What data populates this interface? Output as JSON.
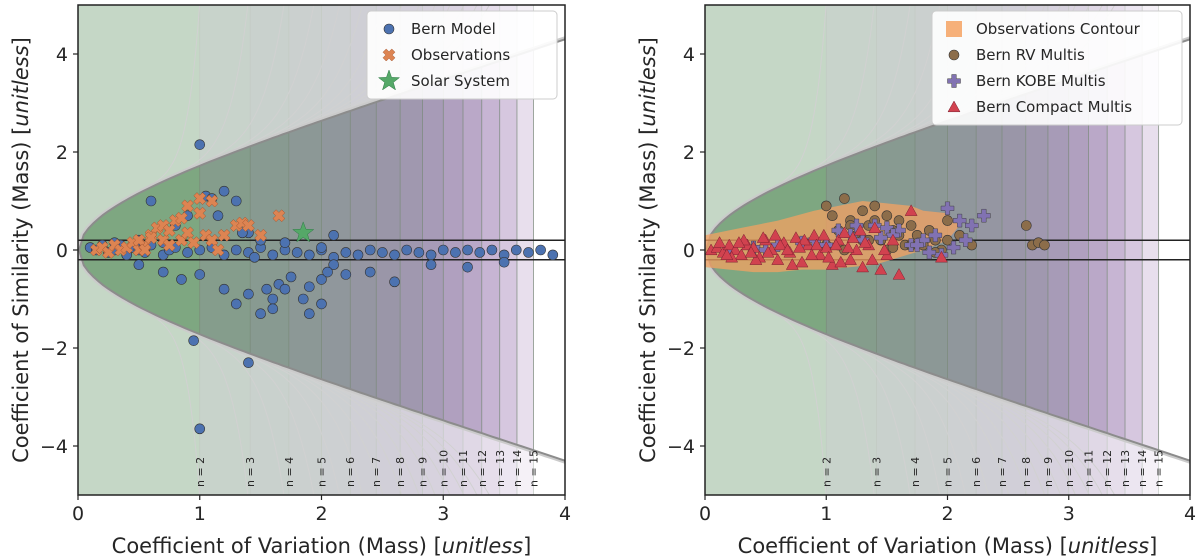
{
  "chart_data": [
    {
      "type": "scatter",
      "panel": "left",
      "xlabel": "Coefficient of Variation (Mass)",
      "ylabel": "Coefficient of Similarity (Mass)",
      "unit": "unitless",
      "xlim": [
        0,
        4
      ],
      "ylim": [
        -5,
        5
      ],
      "xticks": [
        "0",
        "1",
        "2",
        "3",
        "4"
      ],
      "yticks": [
        "4",
        "2",
        "0",
        "−2",
        "−4"
      ],
      "x_tick_values": [
        0,
        1,
        2,
        3,
        4
      ],
      "y_tick_values": [
        4,
        2,
        0,
        -2,
        -4
      ],
      "hlines": [
        0.2,
        -0.2
      ],
      "legend": [
        "Bern Model",
        "Observations",
        "Solar System"
      ],
      "series": [
        {
          "name": "Bern Model",
          "marker": "circle",
          "color": "#4c72b0",
          "x": [
            0.1,
            0.15,
            0.2,
            0.25,
            0.3,
            0.35,
            0.4,
            0.45,
            0.5,
            0.55,
            0.6,
            0.7,
            0.75,
            0.8,
            0.9,
            1.0,
            1.1,
            1.2,
            1.3,
            1.4,
            1.5,
            1.6,
            1.7,
            1.8,
            1.9,
            2.0,
            2.1,
            2.2,
            2.3,
            2.4,
            2.5,
            2.6,
            2.7,
            2.8,
            2.9,
            3.0,
            3.1,
            3.2,
            3.3,
            3.4,
            3.5,
            3.6,
            3.7,
            3.8,
            3.9,
            0.6,
            0.8,
            0.9,
            1.0,
            1.05,
            1.1,
            1.15,
            1.2,
            1.3,
            1.4,
            1.45,
            0.5,
            0.7,
            0.85,
            1.0,
            1.2,
            1.3,
            1.4,
            1.5,
            1.55,
            1.6,
            1.65,
            1.7,
            1.75,
            1.85,
            1.9,
            2.0,
            2.1,
            2.2,
            2.4,
            2.6,
            2.9,
            3.2,
            3.5,
            0.95,
            1.0,
            1.4,
            1.6,
            1.9,
            2.0,
            2.05,
            0.3,
            0.5,
            0.7,
            1.35,
            1.5,
            1.7,
            2.0,
            2.1
          ],
          "y": [
            0.05,
            0.0,
            0.1,
            -0.05,
            0.0,
            0.1,
            -0.1,
            0.05,
            0.0,
            -0.05,
            0.1,
            -0.1,
            0.0,
            0.05,
            -0.05,
            0.0,
            0.05,
            -0.1,
            0.0,
            -0.05,
            0.05,
            -0.1,
            0.0,
            -0.05,
            -0.1,
            0.0,
            -0.15,
            -0.05,
            -0.1,
            0.0,
            -0.05,
            -0.1,
            0.0,
            -0.05,
            -0.1,
            0.0,
            -0.05,
            0.0,
            -0.05,
            0.0,
            -0.1,
            0.0,
            -0.05,
            0.0,
            -0.1,
            1.0,
            0.5,
            0.7,
            2.15,
            1.1,
            1.05,
            0.7,
            1.2,
            1.0,
            0.35,
            -0.15,
            -0.3,
            -0.45,
            -0.6,
            -0.5,
            -0.8,
            -1.1,
            -0.9,
            -1.3,
            -0.8,
            -1.0,
            -0.7,
            -0.8,
            -0.55,
            -1.0,
            -0.75,
            -0.6,
            -0.3,
            -0.5,
            -0.45,
            -0.65,
            -0.3,
            -0.35,
            -0.25,
            -1.85,
            -3.65,
            -2.3,
            -1.2,
            -1.3,
            -1.1,
            -0.45,
            0.15,
            0.2,
            0.15,
            0.35,
            0.2,
            0.15,
            0.05,
            0.3
          ]
        },
        {
          "name": "Observations",
          "marker": "x",
          "color": "#dd8452",
          "x": [
            0.15,
            0.2,
            0.25,
            0.3,
            0.35,
            0.4,
            0.45,
            0.5,
            0.55,
            0.6,
            0.65,
            0.7,
            0.75,
            0.8,
            0.85,
            0.9,
            0.95,
            1.0,
            1.05,
            1.1,
            1.15,
            1.2,
            1.3,
            1.35,
            1.4,
            1.5,
            1.65,
            0.5,
            0.55,
            0.6,
            0.7,
            0.75,
            0.85,
            0.9,
            1.0,
            1.1
          ],
          "y": [
            0.0,
            0.05,
            -0.05,
            0.1,
            0.0,
            0.05,
            0.15,
            0.0,
            0.1,
            0.3,
            0.45,
            0.2,
            0.1,
            0.6,
            0.2,
            0.35,
            0.15,
            0.75,
            0.3,
            0.2,
            0.0,
            0.3,
            0.5,
            0.55,
            0.5,
            0.3,
            0.7,
            0.2,
            0.0,
            0.25,
            0.5,
            0.4,
            0.65,
            0.9,
            1.05,
            1.0
          ]
        },
        {
          "name": "Solar System",
          "marker": "star",
          "color": "#55a868",
          "x": [
            1.85
          ],
          "y": [
            0.35
          ]
        }
      ],
      "n_labels": [
        "n = 2",
        "n = 3",
        "n = 4",
        "n = 5",
        "n = 6",
        "n = 7",
        "n = 8",
        "n = 9",
        "n = 10",
        "n = 11",
        "n = 12",
        "n = 13",
        "n = 14",
        "n = 15"
      ]
    },
    {
      "type": "scatter",
      "panel": "right",
      "xlabel": "Coefficient of Variation (Mass)",
      "ylabel": "Coefficient of Similarity (Mass)",
      "unit": "unitless",
      "xlim": [
        0,
        4
      ],
      "ylim": [
        -5,
        5
      ],
      "xticks": [
        "0",
        "1",
        "2",
        "3",
        "4"
      ],
      "yticks": [
        "4",
        "2",
        "0",
        "−2",
        "−4"
      ],
      "x_tick_values": [
        0,
        1,
        2,
        3,
        4
      ],
      "y_tick_values": [
        4,
        2,
        0,
        -2,
        -4
      ],
      "hlines": [
        0.2,
        -0.2
      ],
      "legend": [
        "Observations Contour",
        "Bern RV Multis",
        "Bern KOBE Multis",
        "Bern Compact Multis"
      ],
      "contour": {
        "name": "Observations Contour",
        "color": "#f4a261",
        "x": [
          0.0,
          0.3,
          0.6,
          0.9,
          1.1,
          1.3,
          1.5,
          1.7,
          1.8,
          2.0,
          2.1,
          2.0,
          1.8,
          1.6,
          1.4,
          1.2,
          1.0,
          0.8,
          0.6,
          0.4,
          0.2,
          0.0
        ],
        "y": [
          0.3,
          0.45,
          0.6,
          0.8,
          0.9,
          1.0,
          0.95,
          0.9,
          0.8,
          0.75,
          0.5,
          0.2,
          0.0,
          -0.15,
          -0.3,
          -0.35,
          -0.4,
          -0.4,
          -0.45,
          -0.45,
          -0.4,
          -0.35
        ]
      },
      "series": [
        {
          "name": "Bern RV Multis",
          "marker": "circle",
          "color": "#8c6d4a",
          "x": [
            1.0,
            1.05,
            1.1,
            1.15,
            1.2,
            1.25,
            1.3,
            1.35,
            1.4,
            1.45,
            1.5,
            1.55,
            1.6,
            1.65,
            1.7,
            1.75,
            1.8,
            1.85,
            1.9,
            1.95,
            2.0,
            1.1,
            1.3,
            1.5,
            1.7,
            1.9,
            1.2,
            1.4,
            1.6,
            1.8,
            2.0,
            2.1,
            2.2,
            2.65,
            2.7,
            2.75,
            2.8,
            1.0,
            1.15,
            1.35,
            1.55
          ],
          "y": [
            0.9,
            0.7,
            0.4,
            1.05,
            0.6,
            0.3,
            0.8,
            0.5,
            0.9,
            0.2,
            0.7,
            0.4,
            0.6,
            0.1,
            0.5,
            0.3,
            0.15,
            0.4,
            0.2,
            0.0,
            0.6,
            0.1,
            0.2,
            0.0,
            0.1,
            -0.05,
            0.5,
            0.6,
            0.3,
            0.1,
            0.2,
            0.3,
            0.1,
            0.5,
            0.1,
            0.15,
            0.1,
            0.1,
            0.0,
            0.2,
            0.05
          ]
        },
        {
          "name": "Bern KOBE Multis",
          "marker": "plus",
          "color": "#8172b2",
          "x": [
            0.2,
            0.4,
            0.6,
            0.8,
            1.0,
            1.1,
            1.2,
            1.3,
            1.4,
            1.5,
            1.6,
            1.7,
            1.8,
            1.9,
            2.0,
            2.1,
            2.2,
            2.3,
            1.55,
            1.75,
            1.95,
            2.05,
            2.15,
            0.5,
            0.9,
            1.25,
            1.45,
            1.85
          ],
          "y": [
            0.0,
            0.05,
            0.1,
            0.15,
            0.1,
            0.4,
            0.3,
            0.2,
            0.5,
            0.45,
            0.4,
            0.1,
            0.2,
            0.3,
            0.85,
            0.6,
            0.5,
            0.7,
            0.3,
            0.1,
            -0.1,
            0.05,
            0.2,
            0.0,
            0.2,
            0.5,
            0.25,
            -0.05
          ]
        },
        {
          "name": "Bern Compact Multis",
          "marker": "triangle",
          "color": "#d1424f",
          "x": [
            0.05,
            0.1,
            0.15,
            0.2,
            0.25,
            0.3,
            0.35,
            0.4,
            0.45,
            0.5,
            0.55,
            0.6,
            0.65,
            0.7,
            0.75,
            0.8,
            0.85,
            0.9,
            0.95,
            1.0,
            1.05,
            1.1,
            1.15,
            1.2,
            1.25,
            1.3,
            1.35,
            1.4,
            1.45,
            1.5,
            1.55,
            1.6,
            0.12,
            0.22,
            0.32,
            0.42,
            0.52,
            0.62,
            0.72,
            0.82,
            0.92,
            1.02,
            1.12,
            1.22,
            1.32,
            0.18,
            0.38,
            0.58,
            0.78,
            0.98,
            1.18,
            1.38,
            0.28,
            0.48,
            0.68,
            0.88,
            1.08,
            1.28,
            1.48,
            1.7,
            1.95
          ],
          "y": [
            0.0,
            0.05,
            -0.05,
            0.1,
            0.0,
            -0.1,
            0.1,
            0.05,
            -0.15,
            0.2,
            0.0,
            -0.2,
            0.15,
            -0.05,
            0.25,
            -0.25,
            0.1,
            0.3,
            -0.1,
            0.05,
            -0.3,
            0.2,
            0.35,
            -0.2,
            0.0,
            -0.35,
            0.1,
            0.45,
            -0.4,
            -0.1,
            0.2,
            -0.5,
            0.15,
            -0.15,
            0.2,
            -0.2,
            -0.05,
            0.1,
            -0.3,
            0.2,
            0.1,
            -0.15,
            -0.25,
            0.25,
            0.15,
            -0.1,
            -0.05,
            0.3,
            0.05,
            0.3,
            0.05,
            -0.2,
            0.15,
            0.25,
            0.0,
            -0.1,
            0.1,
            0.4,
            0.0,
            0.8,
            -0.15
          ]
        }
      ],
      "n_labels": [
        "n = 2",
        "n = 3",
        "n = 4",
        "n = 5",
        "n = 6",
        "n = 7",
        "n = 8",
        "n = 9",
        "n = 10",
        "n = 11",
        "n = 12",
        "n = 13",
        "n = 14",
        "n = 15"
      ]
    }
  ]
}
